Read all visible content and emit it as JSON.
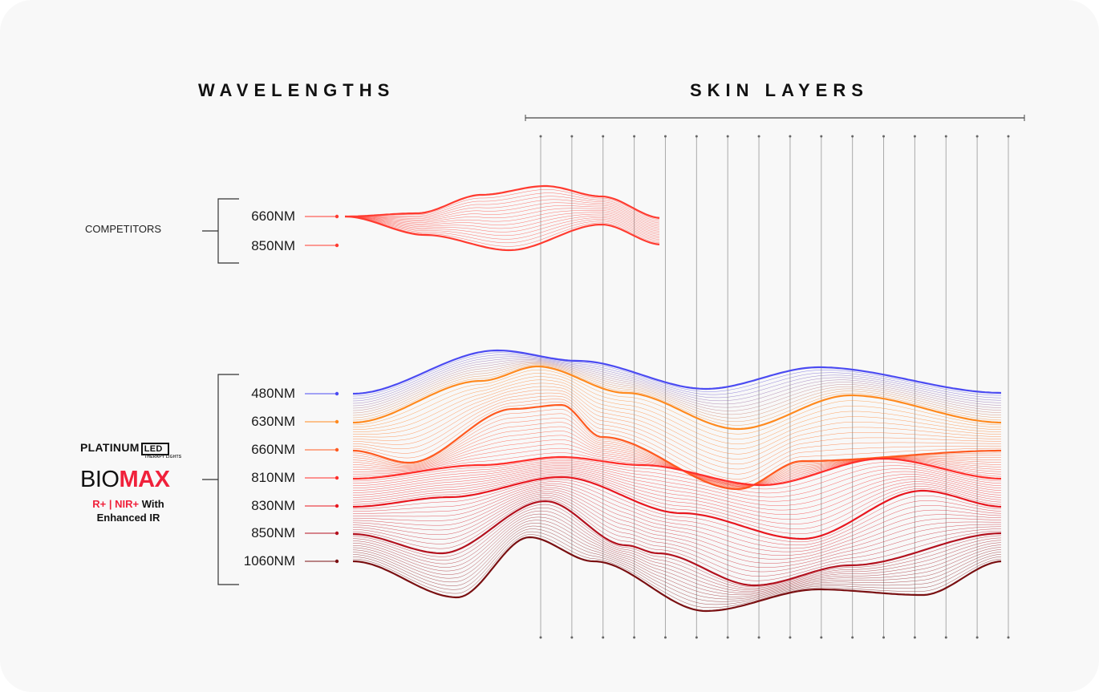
{
  "headings": {
    "wavelengths": "WAVELENGTHS",
    "skin_layers": "SKIN LAYERS"
  },
  "competitors": {
    "label": "COMPETITORS",
    "wavelengths": [
      {
        "label": "660NM",
        "color": "#ff3b30"
      },
      {
        "label": "850NM",
        "color": "#ff3b30"
      }
    ]
  },
  "biomax": {
    "brand": "PLATINUM",
    "brand_badge": "LED",
    "brand_tagline": "THERAPY LIGHTS",
    "product_light": "BIO",
    "product_bold": "MAX",
    "subtitle_red": "R+ | NIR+",
    "subtitle_black": "With",
    "subtitle_line2": "Enhanced IR",
    "wavelengths": [
      {
        "label": "480NM",
        "color": "#4b4bf2"
      },
      {
        "label": "630NM",
        "color": "#ff8a1f"
      },
      {
        "label": "660NM",
        "color": "#ff5a20"
      },
      {
        "label": "810NM",
        "color": "#ff2e2a"
      },
      {
        "label": "830NM",
        "color": "#e8171f"
      },
      {
        "label": "850NM",
        "color": "#b3121f"
      },
      {
        "label": "1060NM",
        "color": "#7a1012"
      }
    ]
  },
  "skin_layer_count": 16
}
